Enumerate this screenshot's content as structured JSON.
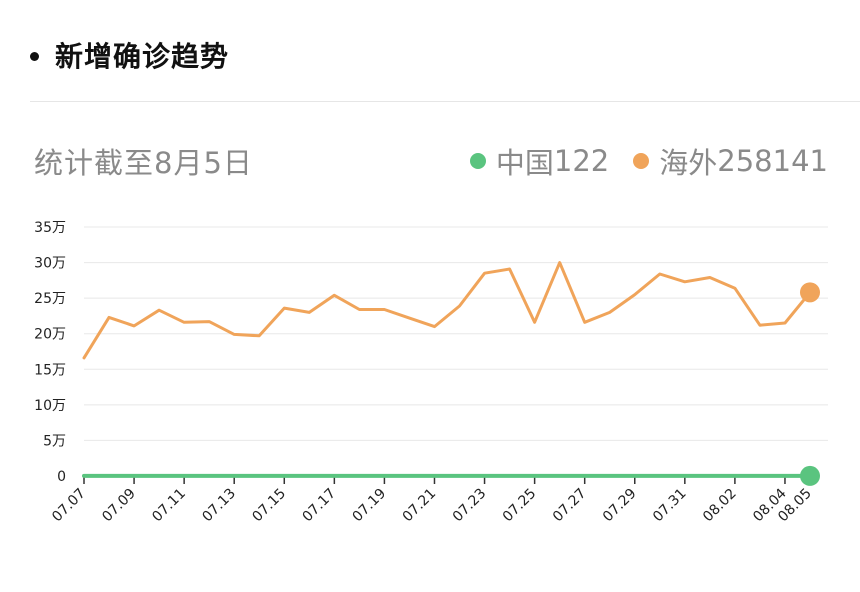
{
  "header": {
    "title": "新增确诊趋势"
  },
  "subtitle": "统计截至8月5日",
  "legend": [
    {
      "label": "中国",
      "value": "122",
      "color": "#5ac47f"
    },
    {
      "label": "海外",
      "value": "258141",
      "color": "#f0a45a"
    }
  ],
  "chart_data": {
    "type": "line",
    "x": [
      "07.07",
      "07.08",
      "07.09",
      "07.10",
      "07.11",
      "07.12",
      "07.13",
      "07.14",
      "07.15",
      "07.16",
      "07.17",
      "07.18",
      "07.19",
      "07.20",
      "07.21",
      "07.22",
      "07.23",
      "07.24",
      "07.25",
      "07.26",
      "07.27",
      "07.28",
      "07.29",
      "07.30",
      "07.31",
      "08.01",
      "08.02",
      "08.03",
      "08.04",
      "08.05"
    ],
    "x_tick_labels": [
      "07.07",
      "07.09",
      "07.11",
      "07.13",
      "07.15",
      "07.17",
      "07.19",
      "07.21",
      "07.23",
      "07.25",
      "07.27",
      "07.29",
      "07.31",
      "08.02",
      "08.04",
      "08.05"
    ],
    "y_tick_labels": [
      "0",
      "5万",
      "10万",
      "15万",
      "20万",
      "25万",
      "30万",
      "35万"
    ],
    "ylim": [
      0,
      350000
    ],
    "grid": true,
    "series": [
      {
        "name": "中国",
        "color": "#5ac47f",
        "values": [
          120,
          110,
          130,
          125,
          118,
          122,
          115,
          128,
          130,
          120,
          125,
          118,
          122,
          130,
          128,
          120,
          118,
          125,
          122,
          130,
          128,
          120,
          118,
          125,
          122,
          120,
          118,
          125,
          120,
          122
        ]
      },
      {
        "name": "海外",
        "color": "#f0a45a",
        "values": [
          166000,
          223000,
          211000,
          233000,
          216000,
          217000,
          199000,
          197000,
          236000,
          230000,
          254000,
          234000,
          234000,
          222000,
          210000,
          239000,
          285000,
          291000,
          216000,
          300000,
          216000,
          230000,
          255000,
          284000,
          273000,
          279000,
          264000,
          212000,
          215000,
          258141
        ]
      }
    ]
  }
}
